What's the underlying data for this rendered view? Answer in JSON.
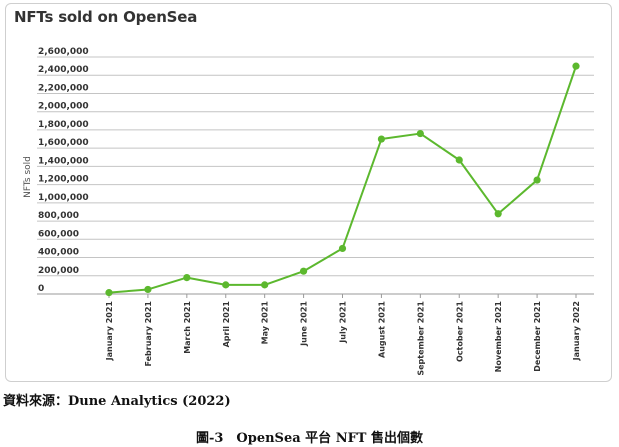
{
  "figure": {
    "source": "資料來源：Dune Analytics (2022)",
    "caption": "圖-3　OpenSea 平台 NFT 售出個數"
  },
  "chart_data": {
    "type": "line",
    "title": "NFTs sold on OpenSea",
    "ylabel": "NFTs sold",
    "xlabel": "",
    "ylim": [
      0,
      2600000
    ],
    "y_ticks": [
      {
        "value": 0,
        "label": "0"
      },
      {
        "value": 200000,
        "label": "200,000"
      },
      {
        "value": 400000,
        "label": "400,000"
      },
      {
        "value": 600000,
        "label": "600,000"
      },
      {
        "value": 800000,
        "label": "800,000"
      },
      {
        "value": 1000000,
        "label": "1,000,000"
      },
      {
        "value": 1200000,
        "label": "1,200,000"
      },
      {
        "value": 1400000,
        "label": "1,400,000"
      },
      {
        "value": 1600000,
        "label": "1,600,000"
      },
      {
        "value": 1800000,
        "label": "1,800,000"
      },
      {
        "value": 2000000,
        "label": "2,000,000"
      },
      {
        "value": 2200000,
        "label": "2,200,000"
      },
      {
        "value": 2400000,
        "label": "2,400,000"
      },
      {
        "value": 2600000,
        "label": "2,600,000"
      }
    ],
    "categories": [
      "January 2021",
      "February 2021",
      "March 2021",
      "April 2021",
      "May 2021",
      "June 2021",
      "July 2021",
      "August 2021",
      "September 2021",
      "October 2021",
      "November 2021",
      "December 2021",
      "January 2022"
    ],
    "series": [
      {
        "values": [
          15000,
          50000,
          180000,
          100000,
          100000,
          250000,
          500000,
          1700000,
          1760000,
          1470000,
          880000,
          1250000,
          2500000
        ],
        "color": "#5cb82e"
      }
    ],
    "grid": true,
    "legend": "none"
  }
}
